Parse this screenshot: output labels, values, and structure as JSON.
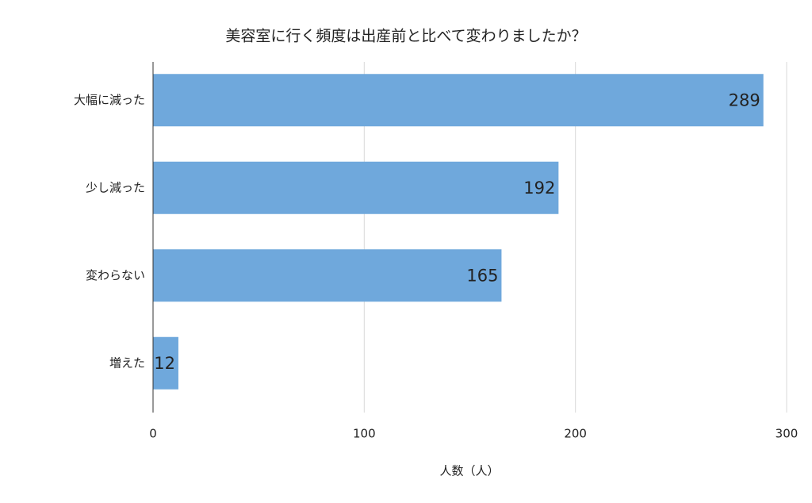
{
  "chart_data": {
    "type": "bar",
    "orientation": "horizontal",
    "title": "美容室に行く頻度は出産前と比べて変わりましたか？",
    "categories": [
      "大幅に減った",
      "少し減った",
      "変わらない",
      "増えた"
    ],
    "values": [
      289,
      192,
      165,
      12
    ],
    "color": "#6fa8dc",
    "xlabel": "人数（人）",
    "xlim": [
      0,
      300
    ],
    "xticks": [
      0,
      100,
      200,
      300
    ],
    "grid": true
  }
}
